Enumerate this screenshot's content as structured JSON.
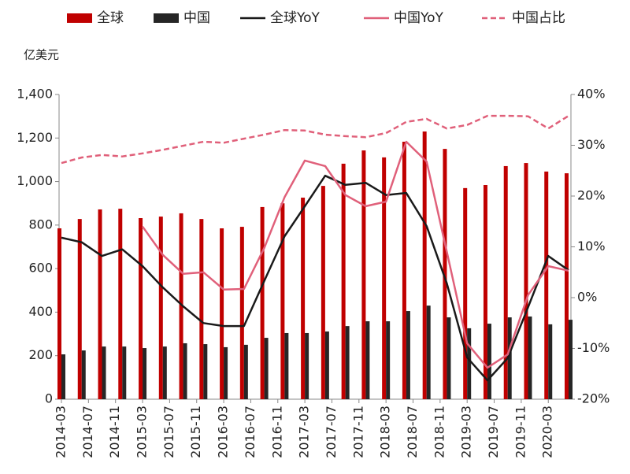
{
  "chart_data": {
    "type": "bar-line",
    "y_label": "亿美元",
    "x": [
      "2014-03",
      "2014-06",
      "2014-09",
      "2014-12",
      "2015-03",
      "2015-06",
      "2015-09",
      "2015-12",
      "2016-03",
      "2016-06",
      "2016-09",
      "2016-12",
      "2017-03",
      "2017-06",
      "2017-09",
      "2017-12",
      "2018-03",
      "2018-06",
      "2018-09",
      "2018-12",
      "2019-03",
      "2019-06",
      "2019-09",
      "2019-12",
      "2020-03",
      "2020-06"
    ],
    "xlim": [
      "2014-03",
      "2020-06"
    ],
    "xticks": [
      "2014-03",
      "2014-07",
      "2014-11",
      "2015-03",
      "2015-07",
      "2015-11",
      "2016-03",
      "2016-07",
      "2016-11",
      "2017-03",
      "2017-07",
      "2017-11",
      "2018-03",
      "2018-07",
      "2018-11",
      "2019-03",
      "2019-07",
      "2019-11",
      "2020-03"
    ],
    "ylim": [
      0,
      1400
    ],
    "yticks": [
      0,
      200,
      400,
      600,
      800,
      {
        "value": 1000,
        "label": "1,000"
      },
      {
        "value": 1200,
        "label": "1,200"
      },
      {
        "value": 1400,
        "label": "1,400"
      }
    ],
    "y2lim": [
      -20,
      40
    ],
    "y2ticks": [
      {
        "value": -20,
        "label": "-20%"
      },
      {
        "value": -10,
        "label": "-10%"
      },
      {
        "value": 0,
        "label": "0%"
      },
      {
        "value": 10,
        "label": "10%"
      },
      {
        "value": 20,
        "label": "20%"
      },
      {
        "value": 30,
        "label": "30%"
      },
      {
        "value": 40,
        "label": "40%"
      }
    ],
    "series": [
      {
        "name": "全球",
        "type": "bar",
        "color": "#c00000",
        "values": [
          785,
          828,
          872,
          875,
          832,
          839,
          854,
          828,
          785,
          792,
          883,
          900,
          926,
          980,
          1082,
          1143,
          1111,
          1183,
          1230,
          1150,
          970,
          984,
          1071,
          1085,
          1046,
          1038
        ]
      },
      {
        "name": "中国",
        "type": "bar",
        "color": "#262626",
        "values": [
          206,
          224,
          242,
          242,
          235,
          242,
          257,
          253,
          239,
          250,
          282,
          304,
          304,
          311,
          336,
          358,
          358,
          405,
          430,
          376,
          326,
          347,
          376,
          380,
          344,
          365
        ]
      },
      {
        "name": "全球YoY",
        "type": "line",
        "axis": "y2",
        "color": "#1a1a1a",
        "values": [
          11.8,
          10.9,
          8.2,
          9.5,
          6.2,
          2.0,
          -1.7,
          -5.0,
          -5.6,
          -5.6,
          3.3,
          12.1,
          18.0,
          24.0,
          22.2,
          22.6,
          20.2,
          20.6,
          14.1,
          2.8,
          -11.8,
          -16.3,
          -11.9,
          -1.9,
          8.2,
          5.4
        ]
      },
      {
        "name": "中国YoY",
        "type": "line",
        "axis": "y2",
        "color": "#e0607a",
        "values": [
          null,
          null,
          null,
          null,
          14.0,
          8.4,
          4.7,
          5.0,
          1.6,
          1.7,
          9.8,
          19.8,
          27.0,
          25.9,
          20.2,
          18.0,
          18.9,
          30.7,
          26.8,
          9.0,
          -9.0,
          -13.8,
          -11.2,
          0.5,
          6.2,
          5.3
        ]
      },
      {
        "name": "中国占比",
        "type": "line",
        "dashed": true,
        "axis": "y2",
        "color": "#e0607a",
        "values": [
          26.5,
          27.6,
          28.1,
          27.8,
          28.4,
          29.1,
          29.9,
          30.7,
          30.5,
          31.3,
          32.1,
          33.0,
          32.9,
          32.1,
          31.8,
          31.6,
          32.4,
          34.6,
          35.2,
          33.3,
          34.0,
          35.8,
          35.8,
          35.7,
          33.3,
          35.8
        ]
      }
    ]
  }
}
